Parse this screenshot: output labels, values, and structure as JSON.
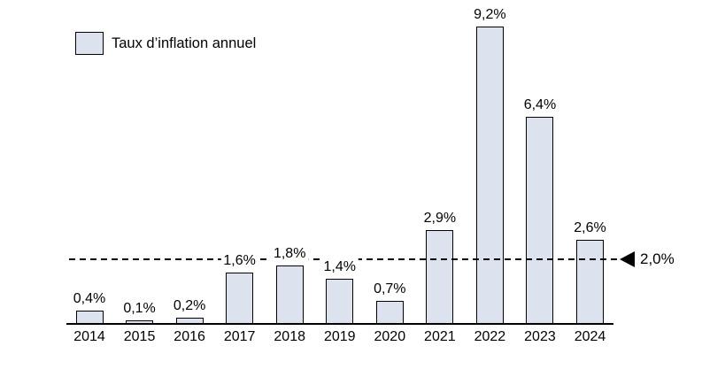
{
  "chart_data": {
    "type": "bar",
    "title": "",
    "legend": "Taux d’inflation annuel",
    "categories": [
      "2014",
      "2015",
      "2016",
      "2017",
      "2018",
      "2019",
      "2020",
      "2021",
      "2022",
      "2023",
      "2024"
    ],
    "values": [
      0.4,
      0.1,
      0.2,
      1.6,
      1.8,
      1.4,
      0.7,
      2.9,
      9.2,
      6.4,
      2.6
    ],
    "value_labels": [
      "0,4%",
      "0,1%",
      "0,2%",
      "1,6%",
      "1,8%",
      "1,4%",
      "0,7%",
      "2,9%",
      "9,2%",
      "6,4%",
      "2,6%"
    ],
    "reference_line": {
      "value": 2.0,
      "label": "2,0%",
      "style": "dashed"
    },
    "xlabel": "",
    "ylabel": "",
    "ylim": [
      0,
      10
    ],
    "grid": false,
    "legend_position": "top-left",
    "colors": {
      "bar_fill": "#dce3ee",
      "bar_border": "#000000",
      "reference_line": "#000000",
      "background": "#ffffff"
    }
  }
}
